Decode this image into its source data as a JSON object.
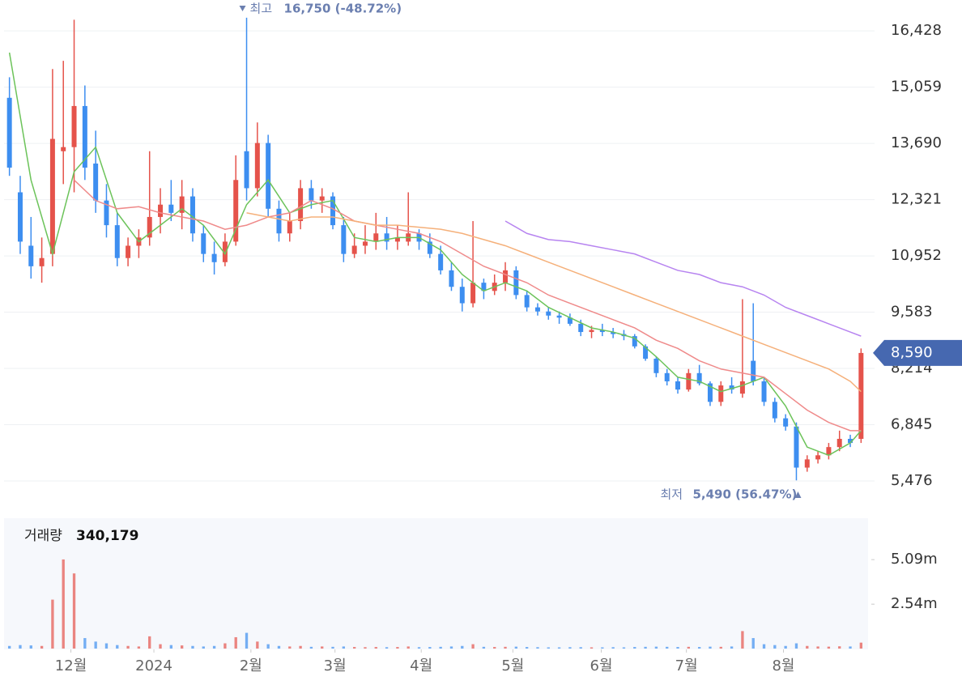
{
  "chart_data": [
    {
      "type": "candlestick",
      "up_color": "#e5534b",
      "down_color": "#3d8ef0",
      "grid": true,
      "xlim": [
        0,
        80
      ],
      "ylim": [
        5160,
        17180
      ],
      "yticks": [
        {
          "value": 5476,
          "label": "5,476"
        },
        {
          "value": 6845,
          "label": "6,845"
        },
        {
          "value": 8214,
          "label": "8,214"
        },
        {
          "value": 9583,
          "label": "9,583"
        },
        {
          "value": 10952,
          "label": "10,952"
        },
        {
          "value": 12321,
          "label": "12,321"
        },
        {
          "value": 13690,
          "label": "13,690"
        },
        {
          "value": 15059,
          "label": "15,059"
        },
        {
          "value": 16428,
          "label": "16,428"
        }
      ],
      "ohlc": [
        [
          14800,
          15300,
          12900,
          13100
        ],
        [
          12500,
          12900,
          11000,
          11300
        ],
        [
          11200,
          11900,
          10400,
          10700
        ],
        [
          10700,
          11400,
          10300,
          10900
        ],
        [
          11000,
          15500,
          10700,
          13800
        ],
        [
          13500,
          15700,
          12700,
          13600
        ],
        [
          13600,
          16700,
          12500,
          14600
        ],
        [
          14600,
          15100,
          12800,
          13100
        ],
        [
          13200,
          14000,
          12000,
          12300
        ],
        [
          12300,
          12700,
          11400,
          11700
        ],
        [
          11700,
          12000,
          10700,
          10900
        ],
        [
          10900,
          11400,
          10700,
          11200
        ],
        [
          11200,
          11600,
          10900,
          11400
        ],
        [
          11400,
          13500,
          11200,
          11900
        ],
        [
          11900,
          12600,
          11500,
          12200
        ],
        [
          12200,
          12800,
          11800,
          12000
        ],
        [
          12000,
          12800,
          11600,
          12400
        ],
        [
          12400,
          12600,
          11300,
          11500
        ],
        [
          11500,
          11700,
          10800,
          11000
        ],
        [
          11000,
          11300,
          10500,
          10800
        ],
        [
          10800,
          11500,
          10700,
          11300
        ],
        [
          11300,
          13400,
          11200,
          12800
        ],
        [
          13500,
          16750,
          12300,
          12600
        ],
        [
          12600,
          14200,
          12400,
          13700
        ],
        [
          13700,
          13900,
          11900,
          12100
        ],
        [
          12100,
          12300,
          11300,
          11500
        ],
        [
          11500,
          12000,
          11300,
          11800
        ],
        [
          11800,
          12800,
          11600,
          12600
        ],
        [
          12600,
          12800,
          12100,
          12300
        ],
        [
          12300,
          12600,
          12000,
          12400
        ],
        [
          12400,
          12500,
          11600,
          11700
        ],
        [
          11700,
          11900,
          10800,
          11000
        ],
        [
          11000,
          11500,
          10900,
          11200
        ],
        [
          11200,
          11700,
          11000,
          11300
        ],
        [
          11300,
          12000,
          11100,
          11500
        ],
        [
          11500,
          11900,
          11100,
          11300
        ],
        [
          11300,
          11700,
          11100,
          11400
        ],
        [
          11300,
          12500,
          11200,
          11500
        ],
        [
          11500,
          11600,
          11100,
          11300
        ],
        [
          11300,
          11500,
          10900,
          11000
        ],
        [
          11000,
          11200,
          10500,
          10600
        ],
        [
          10600,
          10800,
          10100,
          10200
        ],
        [
          10200,
          10400,
          9600,
          9800
        ],
        [
          9800,
          11800,
          9700,
          10300
        ],
        [
          10300,
          10400,
          9900,
          10100
        ],
        [
          10100,
          10500,
          10000,
          10300
        ],
        [
          10300,
          10800,
          10100,
          10600
        ],
        [
          10600,
          10700,
          9900,
          10000
        ],
        [
          10000,
          10100,
          9600,
          9700
        ],
        [
          9700,
          9800,
          9500,
          9600
        ],
        [
          9600,
          9700,
          9400,
          9500
        ],
        [
          9500,
          9600,
          9300,
          9450
        ],
        [
          9450,
          9550,
          9250,
          9300
        ],
        [
          9300,
          9400,
          9000,
          9100
        ],
        [
          9100,
          9250,
          8950,
          9150
        ],
        [
          9150,
          9300,
          9000,
          9100
        ],
        [
          9100,
          9200,
          8950,
          9050
        ],
        [
          9050,
          9150,
          8900,
          9000
        ],
        [
          9000,
          9050,
          8700,
          8750
        ],
        [
          8750,
          8800,
          8400,
          8450
        ],
        [
          8450,
          8500,
          8000,
          8100
        ],
        [
          8100,
          8200,
          7800,
          7900
        ],
        [
          7900,
          8000,
          7600,
          7700
        ],
        [
          7700,
          8200,
          7650,
          8100
        ],
        [
          8100,
          8300,
          7800,
          7850
        ],
        [
          7850,
          7900,
          7300,
          7400
        ],
        [
          7400,
          7900,
          7300,
          7800
        ],
        [
          7800,
          8000,
          7600,
          7700
        ],
        [
          7600,
          9900,
          7500,
          7900
        ],
        [
          8400,
          9800,
          7800,
          7900
        ],
        [
          7900,
          8000,
          7300,
          7400
        ],
        [
          7400,
          7500,
          6900,
          7000
        ],
        [
          7000,
          7100,
          6700,
          6800
        ],
        [
          6800,
          6900,
          5490,
          5800
        ],
        [
          5800,
          6100,
          5700,
          6000
        ],
        [
          6000,
          6200,
          5900,
          6100
        ],
        [
          6100,
          6400,
          6000,
          6300
        ],
        [
          6300,
          6700,
          6200,
          6500
        ],
        [
          6500,
          6600,
          6300,
          6400
        ],
        [
          6500,
          8700,
          6400,
          8590
        ]
      ],
      "series": [
        {
          "color": "#6cc35a",
          "x": [
            0,
            2,
            4,
            6,
            8,
            10,
            12,
            14,
            16,
            18,
            20,
            22,
            24,
            26,
            28,
            30,
            32,
            34,
            36,
            38,
            40,
            42,
            44,
            46,
            48,
            50,
            52,
            54,
            56,
            58,
            60,
            62,
            64,
            66,
            68,
            70,
            72,
            74,
            76,
            78,
            79
          ],
          "values": [
            15900,
            12800,
            11000,
            13000,
            13600,
            12000,
            11300,
            11700,
            12100,
            11700,
            11000,
            12200,
            12800,
            12000,
            12200,
            12300,
            11400,
            11300,
            11400,
            11400,
            11100,
            10500,
            10100,
            10300,
            10100,
            9700,
            9450,
            9200,
            9100,
            8950,
            8500,
            8000,
            7900,
            7650,
            7800,
            8000,
            7300,
            6300,
            6100,
            6400,
            6700
          ]
        },
        {
          "color": "#ef8a8a",
          "x": [
            6,
            8,
            10,
            12,
            14,
            16,
            18,
            20,
            22,
            24,
            26,
            28,
            30,
            32,
            34,
            36,
            38,
            40,
            42,
            44,
            46,
            48,
            50,
            52,
            54,
            56,
            58,
            60,
            62,
            64,
            66,
            68,
            70,
            72,
            74,
            76,
            78,
            79
          ],
          "values": [
            12800,
            12300,
            12100,
            12150,
            12000,
            11900,
            11800,
            11600,
            11700,
            11900,
            12000,
            12300,
            12100,
            11800,
            11700,
            11600,
            11500,
            11300,
            11000,
            10700,
            10500,
            10300,
            10000,
            9800,
            9600,
            9400,
            9200,
            8900,
            8700,
            8400,
            8200,
            8100,
            8000,
            7600,
            7200,
            6900,
            6700,
            6700
          ]
        },
        {
          "color": "#f5b07a",
          "x": [
            22,
            24,
            26,
            28,
            30,
            32,
            34,
            36,
            38,
            40,
            42,
            44,
            46,
            48,
            50,
            52,
            54,
            56,
            58,
            60,
            62,
            64,
            66,
            68,
            70,
            72,
            74,
            76,
            78,
            79
          ],
          "values": [
            12000,
            11900,
            11800,
            11900,
            11900,
            11800,
            11700,
            11700,
            11650,
            11600,
            11500,
            11350,
            11200,
            11000,
            10800,
            10600,
            10400,
            10200,
            10000,
            9800,
            9600,
            9400,
            9200,
            9000,
            8800,
            8600,
            8400,
            8200,
            7900,
            7650
          ]
        },
        {
          "color": "#b784f0",
          "x": [
            46,
            48,
            50,
            52,
            54,
            56,
            58,
            60,
            62,
            64,
            66,
            68,
            70,
            72,
            74,
            76,
            78,
            79
          ],
          "values": [
            11800,
            11500,
            11350,
            11300,
            11200,
            11100,
            11000,
            10800,
            10600,
            10500,
            10300,
            10200,
            10000,
            9700,
            9500,
            9300,
            9100,
            9000
          ]
        }
      ],
      "high_annotation": {
        "index": 22,
        "label": "최고",
        "value": "16,750 (-48.72%)"
      },
      "low_annotation": {
        "index": 73,
        "label": "최저",
        "value": "5,490 (56.47%)"
      },
      "current_price": {
        "value": 8590,
        "label": "8,590"
      }
    },
    {
      "type": "bar",
      "title": "거래량",
      "last_volume": "340,179",
      "xlim": [
        0,
        80
      ],
      "ylim": [
        0,
        7460000
      ],
      "yticks": [
        {
          "value": 2540000,
          "label": "2.54m"
        },
        {
          "value": 5090000,
          "label": "5.09m"
        }
      ],
      "xticks": [
        {
          "value": 6.2,
          "label": "12월"
        },
        {
          "value": 13.9,
          "label": "2024"
        },
        {
          "value": 22.9,
          "label": "2월"
        },
        {
          "value": 30.7,
          "label": "3월"
        },
        {
          "value": 38.7,
          "label": "4월"
        },
        {
          "value": 47.2,
          "label": "5월"
        },
        {
          "value": 55.4,
          "label": "6월"
        },
        {
          "value": 63.3,
          "label": "7월"
        },
        {
          "value": 72.3,
          "label": "8월"
        }
      ],
      "values": [
        150000,
        200000,
        180000,
        150000,
        2800000,
        5100000,
        4300000,
        600000,
        400000,
        300000,
        200000,
        150000,
        120000,
        700000,
        250000,
        200000,
        180000,
        150000,
        120000,
        150000,
        300000,
        650000,
        900000,
        400000,
        250000,
        150000,
        120000,
        150000,
        100000,
        120000,
        100000,
        120000,
        90000,
        80000,
        90000,
        80000,
        90000,
        120000,
        80000,
        90000,
        100000,
        120000,
        150000,
        250000,
        100000,
        90000,
        100000,
        110000,
        90000,
        80000,
        70000,
        70000,
        80000,
        80000,
        70000,
        70000,
        80000,
        70000,
        90000,
        100000,
        110000,
        100000,
        90000,
        100000,
        90000,
        110000,
        100000,
        120000,
        1000000,
        600000,
        250000,
        200000,
        150000,
        300000,
        150000,
        120000,
        110000,
        130000,
        120000,
        340179
      ]
    }
  ]
}
